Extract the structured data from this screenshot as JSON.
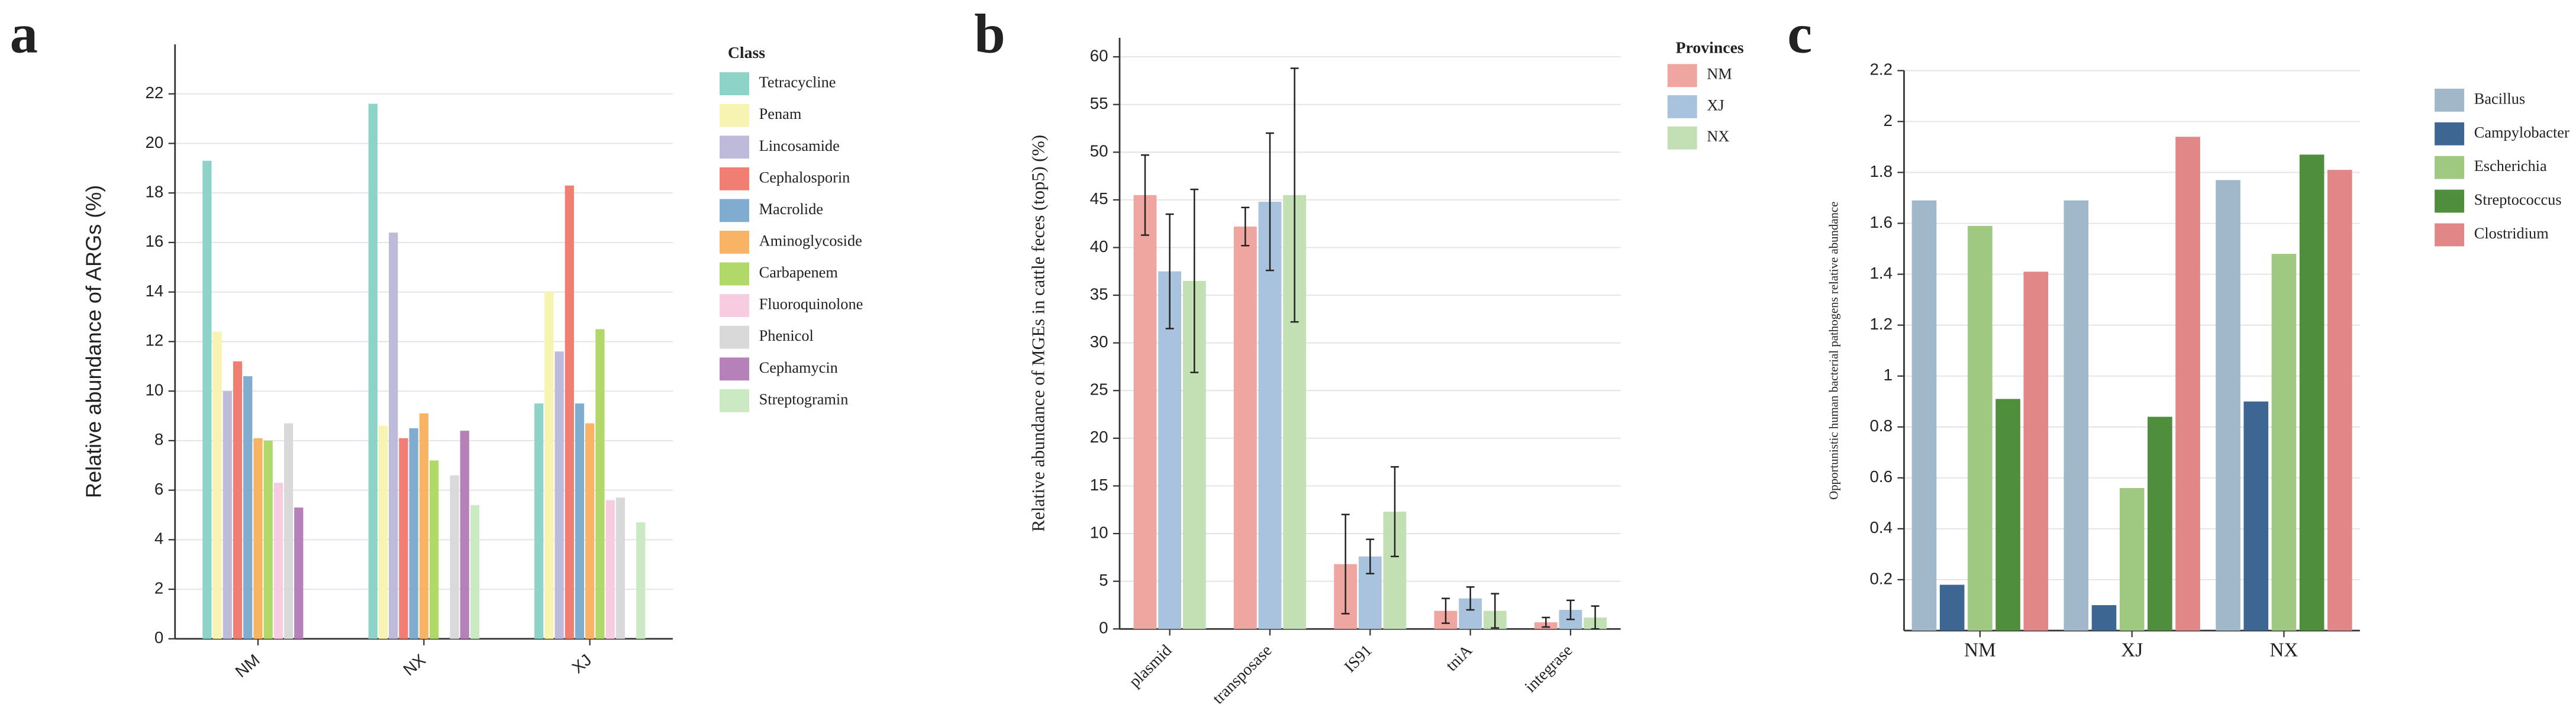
{
  "chart_data": [
    {
      "type": "bar",
      "panel_label": "a",
      "y_label": "Relative abundance of ARGs (%)",
      "legend_title": "Class",
      "categories": [
        "NM",
        "NX",
        "XJ"
      ],
      "series": [
        {
          "name": "Tetracycline",
          "color": "#8dd3c7",
          "values": [
            19.3,
            21.6,
            9.5
          ]
        },
        {
          "name": "Penam",
          "color": "#f7f3b1",
          "values": [
            12.4,
            8.6,
            14.0
          ]
        },
        {
          "name": "Lincosamide",
          "color": "#bebada",
          "values": [
            10.0,
            16.4,
            11.6
          ]
        },
        {
          "name": "Cephalosporin",
          "color": "#f07e72",
          "values": [
            11.2,
            8.1,
            18.3
          ]
        },
        {
          "name": "Macrolide",
          "color": "#80acd0",
          "values": [
            10.6,
            8.5,
            9.5
          ]
        },
        {
          "name": "Aminoglycoside",
          "color": "#f9b364",
          "values": [
            8.1,
            9.1,
            8.7
          ]
        },
        {
          "name": "Carbapenem",
          "color": "#b0d96a",
          "values": [
            8.0,
            7.2,
            12.5
          ]
        },
        {
          "name": "Fluoroquinolone",
          "color": "#f8cce0",
          "values": [
            6.3,
            0,
            5.6
          ]
        },
        {
          "name": "Phenicol",
          "color": "#d9d9d9",
          "values": [
            8.7,
            6.6,
            5.7
          ]
        },
        {
          "name": "Cephamycin",
          "color": "#b680b8",
          "values": [
            5.3,
            8.4,
            0
          ]
        },
        {
          "name": "Streptogramin",
          "color": "#cbe9c3",
          "values": [
            0,
            5.4,
            4.7
          ]
        }
      ],
      "ylim": [
        0,
        24
      ],
      "yticks": [
        0,
        2,
        4,
        6,
        8,
        10,
        12,
        14,
        16,
        18,
        20,
        22
      ],
      "grid": true
    },
    {
      "type": "bar",
      "panel_label": "b",
      "y_label": "Relative abundance of MGEs in cattle feces (top5) (%)",
      "legend_title": "Provinces",
      "categories": [
        "plasmid",
        "transposase",
        "IS91",
        "tniA",
        "integrase"
      ],
      "series": [
        {
          "name": "NM",
          "color": "#f0a6a0",
          "values": [
            45.5,
            42.2,
            6.8,
            1.9,
            0.7
          ],
          "errors": [
            4.2,
            2.0,
            5.2,
            1.3,
            0.5
          ]
        },
        {
          "name": "XJ",
          "color": "#a9c2dd",
          "values": [
            37.5,
            44.8,
            7.6,
            3.2,
            2.0
          ],
          "errors": [
            6.0,
            7.2,
            1.8,
            1.2,
            1.0
          ]
        },
        {
          "name": "NX",
          "color": "#c2e0b3",
          "values": [
            36.5,
            45.5,
            12.3,
            1.9,
            1.2
          ],
          "errors": [
            9.6,
            13.3,
            4.7,
            1.8,
            1.2
          ]
        }
      ],
      "ylim": [
        0,
        62
      ],
      "yticks": [
        0,
        5,
        10,
        15,
        20,
        25,
        30,
        35,
        40,
        45,
        50,
        55,
        60
      ],
      "grid": true
    },
    {
      "type": "bar",
      "panel_label": "c",
      "y_label": "Opportunistic human bacterial pathogens relative abundance",
      "categories": [
        "NM",
        "XJ",
        "NX"
      ],
      "series": [
        {
          "name": "Bacillus",
          "color": "#a0b8ca",
          "values": [
            1.69,
            1.69,
            1.77
          ]
        },
        {
          "name": "Campylobacter",
          "color": "#3e6692",
          "values": [
            0.18,
            0.1,
            0.9
          ]
        },
        {
          "name": "Escherichia",
          "color": "#9fc880",
          "values": [
            1.59,
            0.56,
            1.48
          ]
        },
        {
          "name": "Streptococcus",
          "color": "#4f8e3d",
          "values": [
            0.91,
            0.84,
            1.87
          ]
        },
        {
          "name": "Clostridium",
          "color": "#e28787",
          "values": [
            1.41,
            1.94,
            1.81
          ]
        }
      ],
      "ylim": [
        0,
        2.2
      ],
      "yticks": [
        0.2,
        0.4,
        0.6,
        0.8,
        1,
        1.2,
        1.4,
        1.6,
        1.8,
        2,
        2.2
      ],
      "grid": true
    }
  ]
}
